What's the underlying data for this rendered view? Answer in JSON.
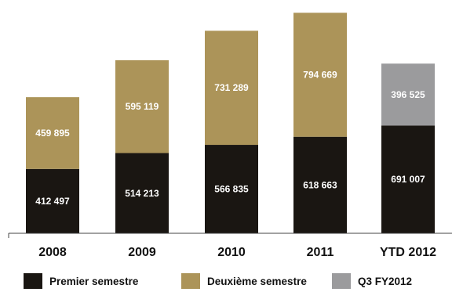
{
  "chart_data": {
    "type": "bar",
    "stacked": true,
    "categories": [
      "2008",
      "2009",
      "2010",
      "2011",
      "YTD 2012"
    ],
    "series": [
      {
        "name": "Premier semestre",
        "color": "#1a1612",
        "values": [
          412497,
          514213,
          566835,
          618663,
          691007
        ],
        "labels": [
          "412 497",
          "514 213",
          "566 835",
          "618 663",
          "691 007"
        ]
      },
      {
        "name": "Deuxième semestre",
        "color": "#ac9459",
        "values": [
          459895,
          595119,
          731289,
          794669,
          null
        ],
        "labels": [
          "459 895",
          "595 119",
          "731 289",
          "794 669",
          ""
        ]
      },
      {
        "name": "Q3 FY2012",
        "color": "#9b9b9d",
        "values": [
          null,
          null,
          null,
          null,
          396525
        ],
        "labels": [
          "",
          "",
          "",
          "",
          "396 525"
        ]
      }
    ],
    "title": "",
    "xlabel": "",
    "ylabel": "",
    "ylim": [
      0,
      1430000
    ],
    "grid": false,
    "legend": "bottom"
  }
}
